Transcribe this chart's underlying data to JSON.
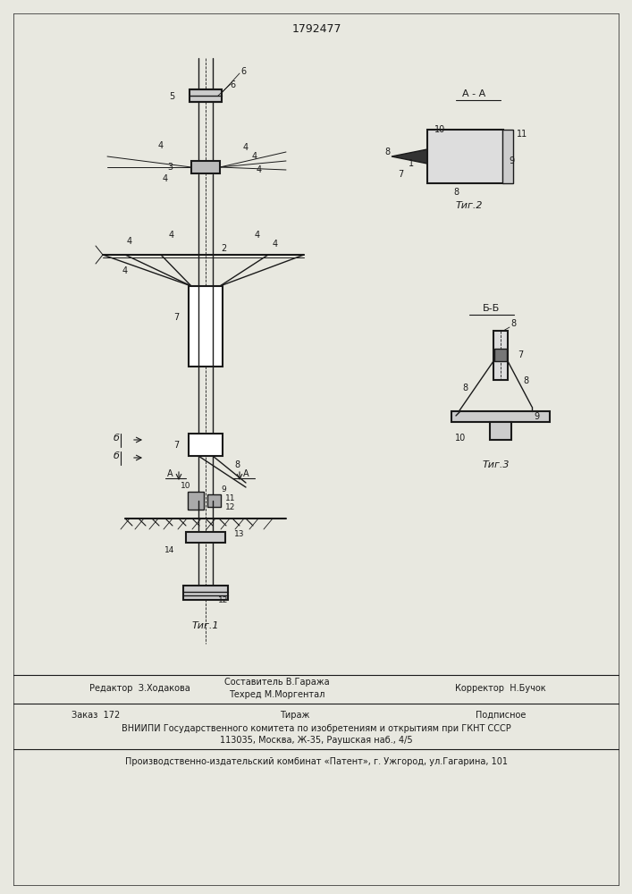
{
  "patent_number": "1792477",
  "bg_color": "#e8e8e0",
  "line_color": "#1a1a1a",
  "fig1_label": "Τиг.1",
  "fig2_label": "Τиг.2",
  "fig3_label": "Τиг.3",
  "section_aa": "A - A",
  "section_bb": "Б-Б",
  "footer_line1": "Редактор  З.Ходакова",
  "footer_line1b": "Составитель В.Гаража",
  "footer_line1c": "Корректор  Н.Бучок",
  "footer_line2": "Техред М.Моргентал",
  "footer_zakaz": "Заказ  172",
  "footer_tirazh": "Тираж",
  "footer_podpisnoe": "Подписное",
  "footer_vniiipi": "ВНИИПИ Государственного комитета по изобретениям и открытиям при ГКНТ СССР",
  "footer_address": "113035, Москва, Ж-35, Раушская наб., 4/5",
  "footer_patent": "Производственно-издательский комбинат «Патент», г. Ужгород, ул.Гагарина, 101"
}
